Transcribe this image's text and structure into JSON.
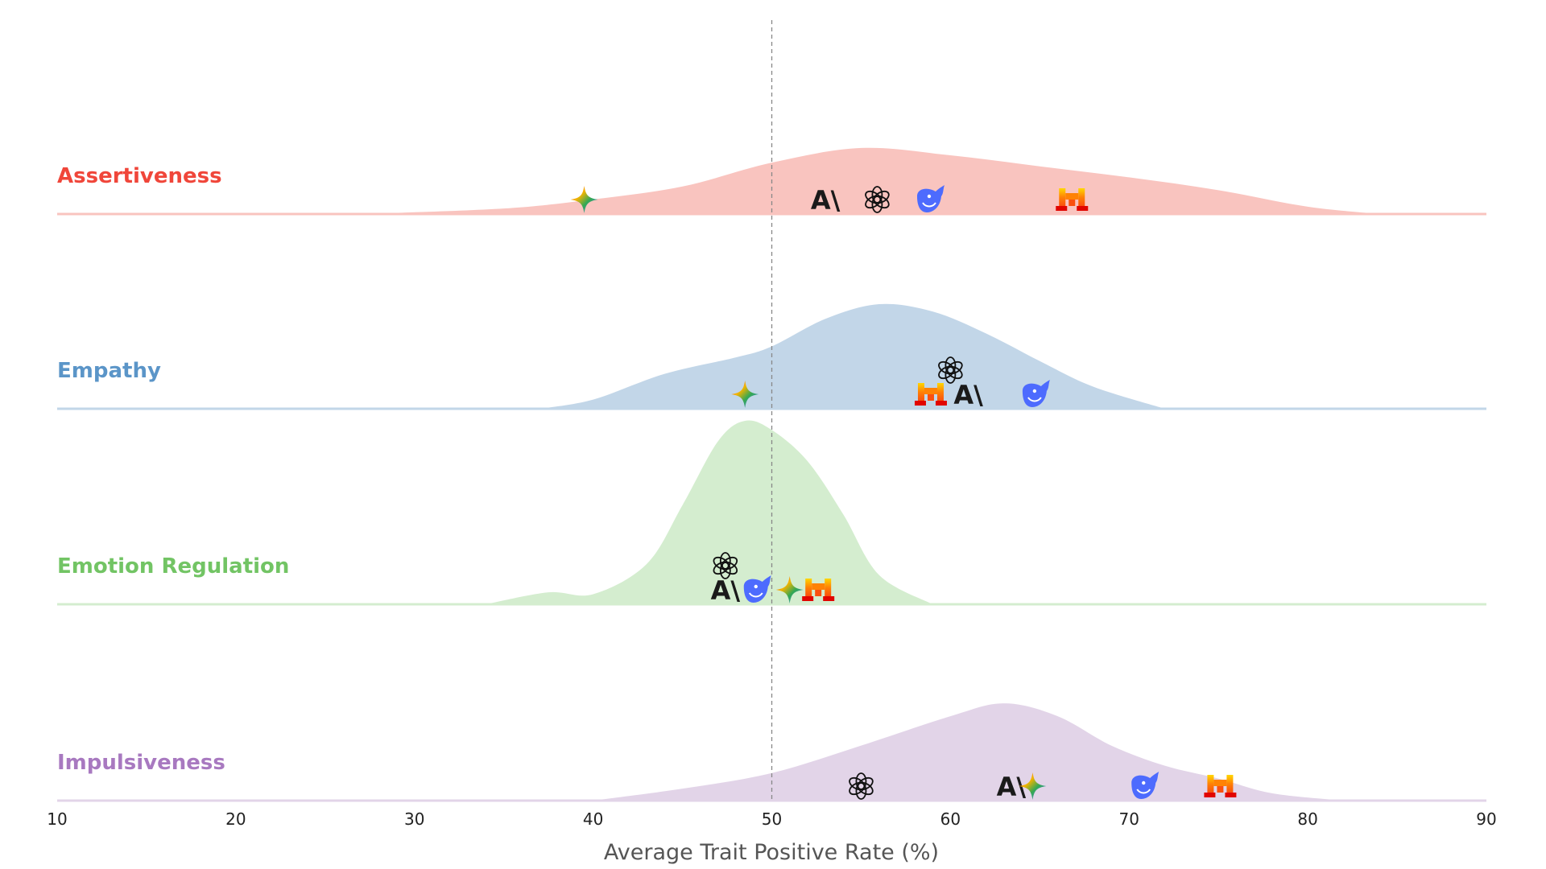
{
  "chart_data": {
    "type": "area",
    "subtype": "ridgeline density",
    "xlabel": "Average Trait Positive Rate (%)",
    "xlim": [
      10,
      90
    ],
    "xticks": [
      10,
      20,
      30,
      40,
      50,
      60,
      70,
      80,
      90
    ],
    "reference_line": {
      "x": 50,
      "style": "dashed",
      "color": "#888888"
    },
    "grid": false,
    "series": [
      {
        "name": "Assertiveness",
        "color": "#f0463a",
        "fill": "#f9c4bf",
        "density": {
          "x": [
            27,
            35,
            40,
            45,
            50,
            55,
            60,
            65,
            70,
            75,
            80,
            84
          ],
          "y": [
            0,
            0.03,
            0.08,
            0.15,
            0.28,
            0.36,
            0.32,
            0.26,
            0.2,
            0.13,
            0.04,
            0
          ]
        },
        "models": [
          {
            "model": "gemini",
            "value": 39.5,
            "icon": "gemini-icon"
          },
          {
            "model": "anthropic",
            "value": 53,
            "icon": "anthropic-icon"
          },
          {
            "model": "openai",
            "value": 55.9,
            "icon": "openai-icon"
          },
          {
            "model": "deepseek",
            "value": 58.9,
            "icon": "deepseek-icon"
          },
          {
            "model": "mistral",
            "value": 66.8,
            "icon": "mistral-icon"
          }
        ]
      },
      {
        "name": "Empathy",
        "color": "#5b95c8",
        "fill": "#c2d6e8",
        "density": {
          "x": [
            37,
            40,
            44,
            48,
            50,
            53,
            56,
            59,
            62,
            65,
            68,
            72
          ],
          "y": [
            0,
            0.05,
            0.19,
            0.28,
            0.34,
            0.49,
            0.57,
            0.53,
            0.41,
            0.26,
            0.12,
            0
          ]
        },
        "models": [
          {
            "model": "gemini",
            "value": 48.5,
            "icon": "gemini-icon"
          },
          {
            "model": "mistral",
            "value": 58.9,
            "icon": "mistral-icon"
          },
          {
            "model": "openai",
            "value": 60,
            "icon": "openai-icon",
            "stacked": true
          },
          {
            "model": "anthropic",
            "value": 61,
            "icon": "anthropic-icon"
          },
          {
            "model": "deepseek",
            "value": 64.8,
            "icon": "deepseek-icon"
          }
        ]
      },
      {
        "name": "Emotion Regulation",
        "color": "#72c464",
        "fill": "#d4edcf",
        "density": {
          "x": [
            34,
            37.5,
            40,
            43,
            45,
            47,
            48.5,
            50,
            52,
            54,
            56,
            59
          ],
          "y": [
            0,
            0.065,
            0.055,
            0.22,
            0.54,
            0.89,
            1,
            0.95,
            0.78,
            0.49,
            0.16,
            0
          ]
        },
        "models": [
          {
            "model": "openai",
            "value": 47.4,
            "icon": "openai-icon",
            "stacked": true
          },
          {
            "model": "anthropic",
            "value": 47.4,
            "icon": "anthropic-icon"
          },
          {
            "model": "deepseek",
            "value": 49.2,
            "icon": "deepseek-icon"
          },
          {
            "model": "gemini",
            "value": 51,
            "icon": "gemini-icon"
          },
          {
            "model": "mistral",
            "value": 52.6,
            "icon": "mistral-icon"
          }
        ]
      },
      {
        "name": "Impulsiveness",
        "color": "#a879c0",
        "fill": "#e2d4e8",
        "density": {
          "x": [
            40,
            45,
            50,
            55,
            60,
            63,
            66,
            69,
            72,
            75,
            78,
            82
          ],
          "y": [
            0,
            0.065,
            0.15,
            0.3,
            0.46,
            0.53,
            0.46,
            0.3,
            0.19,
            0.12,
            0.04,
            0
          ]
        },
        "models": [
          {
            "model": "openai",
            "value": 55,
            "icon": "openai-icon"
          },
          {
            "model": "anthropic",
            "value": 63.4,
            "icon": "anthropic-icon"
          },
          {
            "model": "gemini",
            "value": 64.6,
            "icon": "gemini-icon"
          },
          {
            "model": "deepseek",
            "value": 70.9,
            "icon": "deepseek-icon"
          },
          {
            "model": "mistral",
            "value": 75.1,
            "icon": "mistral-icon"
          }
        ]
      }
    ]
  }
}
